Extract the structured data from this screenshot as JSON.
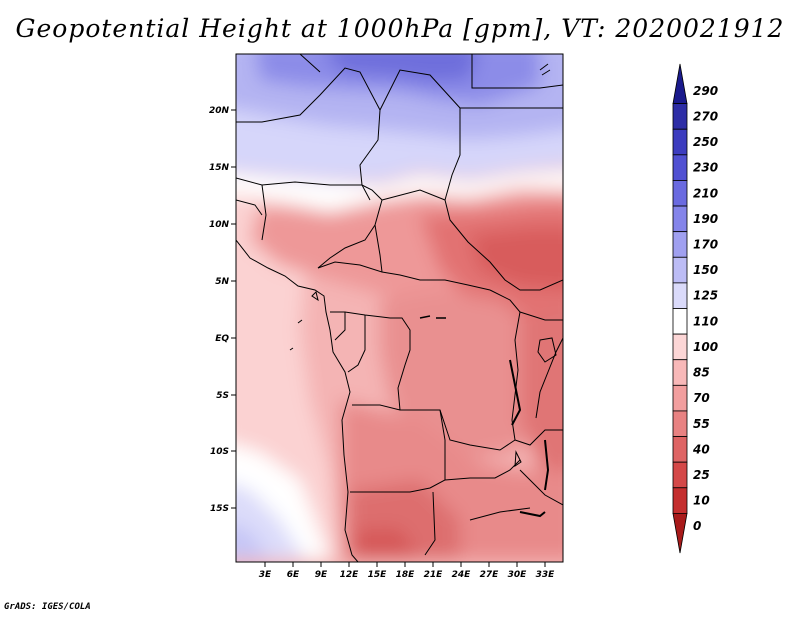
{
  "title": "Geopotential Height at 1000hPa [gpm], VT: 2020021912",
  "credit": "GrADS: IGES/COLA",
  "map": {
    "type": "filled-contour-map",
    "variable": "Geopotential Height at 1000hPa",
    "units": "gpm",
    "valid_time": "2020021912",
    "lat_labels": [
      "20N",
      "15N",
      "10N",
      "5N",
      "EQ",
      "5S",
      "10S",
      "15S"
    ],
    "lon_labels": [
      "3E",
      "6E",
      "9E",
      "12E",
      "15E",
      "18E",
      "21E",
      "24E",
      "27E",
      "30E",
      "33E"
    ]
  },
  "colorbar": {
    "labels": [
      "290",
      "270",
      "250",
      "230",
      "210",
      "190",
      "170",
      "150",
      "125",
      "110",
      "100",
      "85",
      "70",
      "55",
      "40",
      "25",
      "10",
      "0"
    ],
    "colors": [
      "#1a1a8c",
      "#2d2da6",
      "#3c3cbf",
      "#5050d2",
      "#6a6ae0",
      "#8484ea",
      "#a0a0f0",
      "#bcbcf5",
      "#dadafa",
      "#ffffff",
      "#fcd6d6",
      "#f8b8b8",
      "#f29e9e",
      "#e88282",
      "#de6464",
      "#d44848",
      "#c42e2e",
      "#a81a1a"
    ]
  }
}
